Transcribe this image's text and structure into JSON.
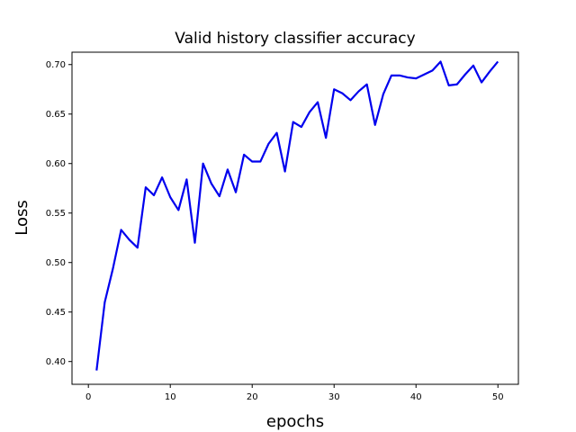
{
  "chart_data": {
    "type": "line",
    "title": "Valid history classifier accuracy",
    "xlabel": "epochs",
    "ylabel": "Loss",
    "xlim": [
      -2.0,
      52.5
    ],
    "ylim": [
      0.377,
      0.7125
    ],
    "xticks": [
      0,
      10,
      20,
      30,
      40,
      50
    ],
    "yticks": [
      0.4,
      0.45,
      0.5,
      0.55,
      0.6,
      0.65,
      0.7
    ],
    "ytick_labels": [
      "0.40",
      "0.45",
      "0.50",
      "0.55",
      "0.60",
      "0.65",
      "0.70"
    ],
    "grid": false,
    "series": [
      {
        "color": "#0000ee",
        "x": [
          1,
          2,
          3,
          4,
          5,
          6,
          7,
          8,
          9,
          10,
          11,
          12,
          13,
          14,
          15,
          16,
          17,
          18,
          19,
          20,
          21,
          22,
          23,
          24,
          25,
          26,
          27,
          28,
          29,
          30,
          31,
          32,
          33,
          34,
          35,
          36,
          37,
          38,
          39,
          40,
          41,
          42,
          43,
          44,
          45,
          46,
          47,
          48,
          49,
          50
        ],
        "y": [
          0.391,
          0.46,
          0.494,
          0.533,
          0.523,
          0.515,
          0.576,
          0.568,
          0.586,
          0.566,
          0.553,
          0.584,
          0.52,
          0.6,
          0.58,
          0.567,
          0.594,
          0.571,
          0.609,
          0.602,
          0.602,
          0.62,
          0.631,
          0.592,
          0.642,
          0.637,
          0.652,
          0.662,
          0.626,
          0.675,
          0.671,
          0.664,
          0.673,
          0.68,
          0.639,
          0.67,
          0.689,
          0.689,
          0.687,
          0.686,
          0.69,
          0.694,
          0.703,
          0.679,
          0.68,
          0.69,
          0.699,
          0.682,
          0.693,
          0.703
        ]
      }
    ]
  }
}
